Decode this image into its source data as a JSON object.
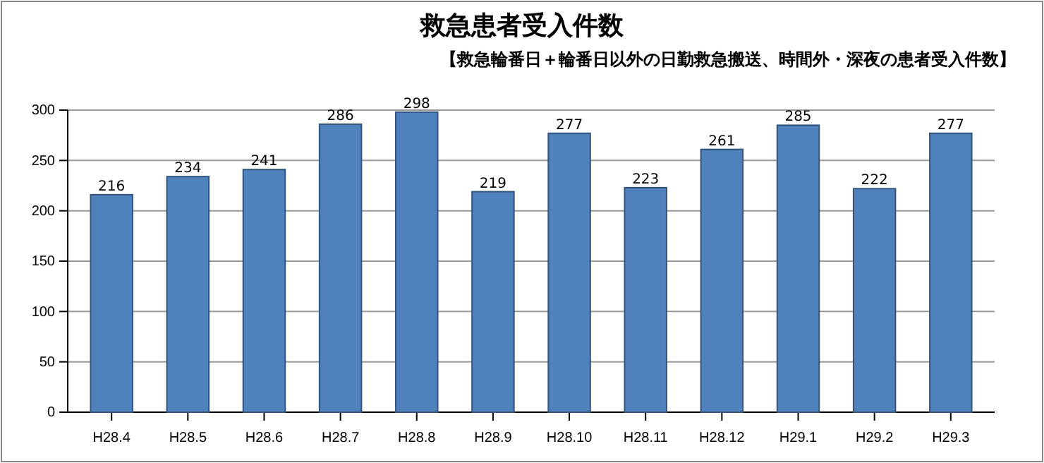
{
  "chart_data": {
    "type": "bar",
    "title": "救急患者受入件数",
    "subtitle": "【救急輪番日＋輪番日以外の日勤救急搬送、時間外・深夜の患者受入件数】",
    "categories": [
      "H28.4",
      "H28.5",
      "H28.6",
      "H28.7",
      "H28.8",
      "H28.9",
      "H28.10",
      "H28.11",
      "H28.12",
      "H29.1",
      "H29.2",
      "H29.3"
    ],
    "values": [
      216,
      234,
      241,
      286,
      298,
      219,
      277,
      223,
      261,
      285,
      222,
      277
    ],
    "color": "#4f81bd",
    "data_labels": true,
    "grid": "y",
    "ylim": [
      0,
      300
    ],
    "yticks": [
      0,
      50,
      100,
      150,
      200,
      250,
      300
    ]
  }
}
